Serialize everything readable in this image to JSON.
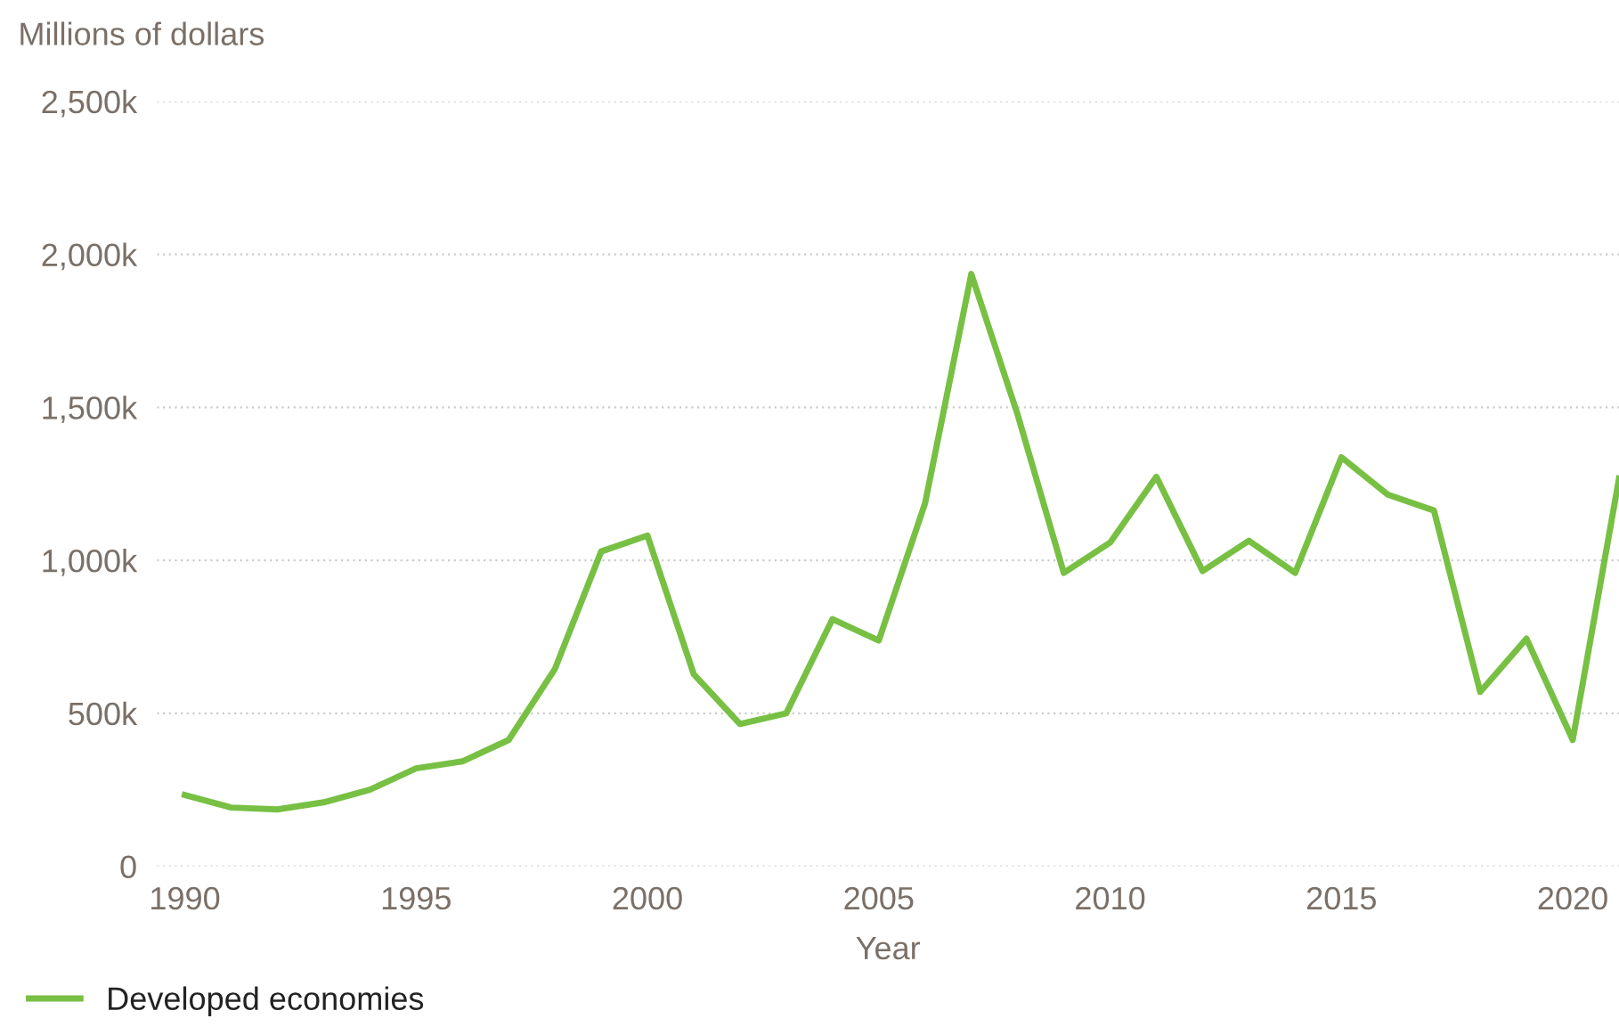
{
  "chart_data": {
    "type": "line",
    "ylabel": "Millions of dollars",
    "xlabel": "Year",
    "x": [
      1990,
      1991,
      1992,
      1993,
      1994,
      1995,
      1996,
      1997,
      1998,
      1999,
      2000,
      2001,
      2002,
      2003,
      2004,
      2005,
      2006,
      2007,
      2008,
      2009,
      2010,
      2011,
      2012,
      2013,
      2014,
      2015,
      2016,
      2017,
      2018,
      2019,
      2020,
      2021
    ],
    "series": [
      {
        "name": "Developed economies",
        "color": "#77c043",
        "values": [
          233000,
          192000,
          186000,
          209000,
          250000,
          320000,
          343000,
          413000,
          645000,
          1029000,
          1081000,
          628000,
          465000,
          500000,
          808000,
          738000,
          1186000,
          1936000,
          1477000,
          959000,
          1058000,
          1273000,
          965000,
          1064000,
          959000,
          1337000,
          1215000,
          1163000,
          570000,
          744000,
          413000,
          1267000
        ]
      }
    ],
    "xlim": [
      1989.4,
      2021
    ],
    "xticks": [
      1990,
      1995,
      2000,
      2005,
      2010,
      2015,
      2020
    ],
    "ylim": [
      0,
      2500000
    ],
    "yticks": [
      0,
      {
        "value": 500000,
        "label": "500k"
      },
      {
        "value": 1000000,
        "label": "1,000k"
      },
      {
        "value": 1500000,
        "label": "1,500k"
      },
      {
        "value": 2000000,
        "label": "2,000k"
      },
      {
        "value": 2500000,
        "label": "2,500k"
      }
    ],
    "grid": "y",
    "legend": "bottom left",
    "marker": "none",
    "line_style": "solid"
  }
}
